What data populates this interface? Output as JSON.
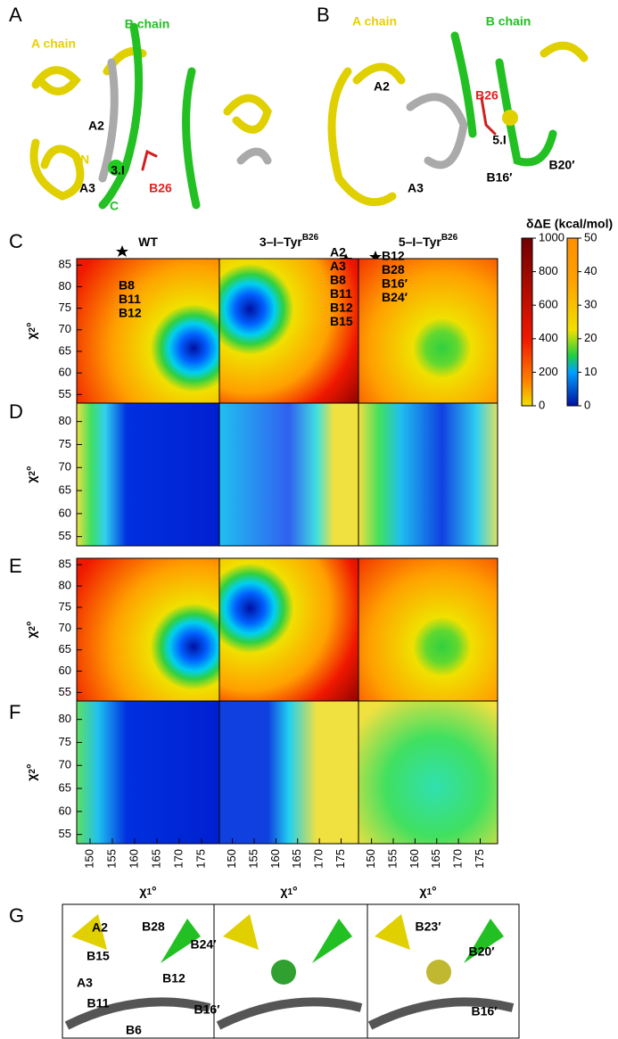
{
  "panel_labels": [
    "A",
    "B",
    "C",
    "D",
    "E",
    "F",
    "G"
  ],
  "panel_a": {
    "labels": [
      "A chain",
      "B chain",
      "A2",
      "N",
      "3.I",
      "B26",
      "A3",
      "C"
    ]
  },
  "panel_b": {
    "labels": [
      "A chain",
      "B chain",
      "A2",
      "B26",
      "5.I",
      "B20′",
      "A3",
      "B16′"
    ]
  },
  "heatmaps": {
    "columns": [
      {
        "text": "WT"
      },
      {
        "text": "3–I–Tyr",
        "sup": "B26"
      },
      {
        "text": "5–I–Tyr",
        "sup": "B26"
      }
    ],
    "y_label": {
      "symbol": "χ",
      "sub": "2",
      "unit": "°"
    },
    "x_label": {
      "symbol": "χ",
      "sub": "1",
      "unit": "°"
    },
    "xlim": [
      147,
      179
    ],
    "xticks": [
      150,
      155,
      160,
      165,
      170,
      175
    ],
    "rows": [
      {
        "ylim": [
          53,
          86.5
        ],
        "yticks": [
          55,
          60,
          65,
          70,
          75,
          80,
          85
        ]
      },
      {
        "ylim": [
          53,
          84
        ],
        "yticks": [
          55,
          60,
          65,
          70,
          75,
          80
        ]
      },
      {
        "ylim": [
          53,
          86.5
        ],
        "yticks": [
          55,
          60,
          65,
          70,
          75,
          80,
          85
        ]
      },
      {
        "ylim": [
          53,
          84
        ],
        "yticks": [
          55,
          60,
          65,
          70,
          75,
          80
        ]
      }
    ],
    "annotations": [
      [
        "B8",
        "B11",
        "B12"
      ],
      [
        "A2",
        "A3",
        "B8",
        "B11",
        "B12",
        "B15"
      ],
      [
        "B12",
        "B28",
        "B16′",
        "B24′"
      ]
    ],
    "colorbar": {
      "title": "δΔE (kcal/mol)",
      "left_lim": [
        0,
        1000
      ],
      "left_ticks": [
        0,
        200,
        400,
        600,
        800,
        1000
      ],
      "right_lim": [
        0,
        50
      ],
      "right_ticks": [
        0,
        10,
        20,
        30,
        40,
        50
      ]
    }
  },
  "panel_g": {
    "labels": [
      "A2",
      "B28",
      "B24′",
      "B15",
      "B12",
      "A3",
      "B11",
      "B16′",
      "B6"
    ],
    "right_labels": [
      "B23′",
      "B20′",
      "B16′"
    ]
  }
}
